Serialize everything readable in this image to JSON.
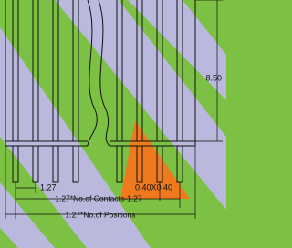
{
  "dimensions": {
    "height": "8.50",
    "pitch": "1.27",
    "pin_size": "0.40X0.40",
    "contacts_width": "1.27*No.of Contacts-1.27",
    "positions_width": "1.27*No.of Positions"
  }
}
